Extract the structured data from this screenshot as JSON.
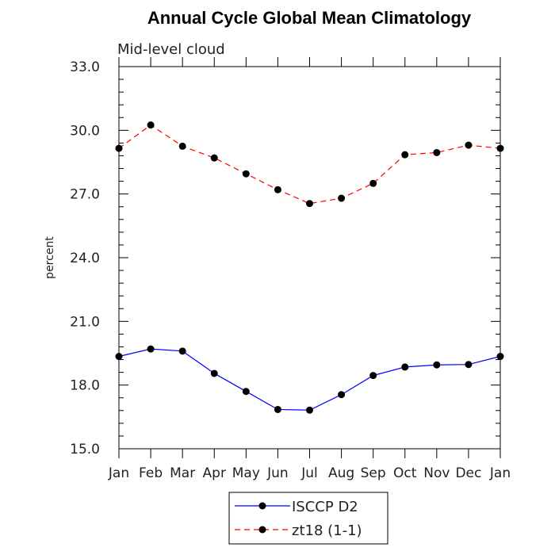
{
  "chart_data": {
    "type": "line",
    "title": "Annual Cycle Global Mean Climatology",
    "subtitle": "Mid-level cloud",
    "xlabel": "",
    "ylabel": "percent",
    "ylim": [
      15.0,
      33.0
    ],
    "y_ticks": [
      "15.0",
      "18.0",
      "21.0",
      "24.0",
      "27.0",
      "30.0",
      "33.0"
    ],
    "categories": [
      "Jan",
      "Feb",
      "Mar",
      "Apr",
      "May",
      "Jun",
      "Jul",
      "Aug",
      "Sep",
      "Oct",
      "Nov",
      "Dec",
      "Jan"
    ],
    "series": [
      {
        "name": "ISCCP D2",
        "color": "#0000ff",
        "dash": "solid",
        "values": [
          19.35,
          19.7,
          19.6,
          18.55,
          17.7,
          16.85,
          16.82,
          17.55,
          18.45,
          18.85,
          18.95,
          18.97,
          19.35
        ]
      },
      {
        "name": "zt18 (1-1)",
        "color": "#ff0000",
        "dash": "dashed",
        "values": [
          29.15,
          30.25,
          29.25,
          28.7,
          27.95,
          27.2,
          26.55,
          26.8,
          27.5,
          28.85,
          28.95,
          29.3,
          29.15
        ]
      }
    ],
    "legend_position": "bottom-center"
  }
}
